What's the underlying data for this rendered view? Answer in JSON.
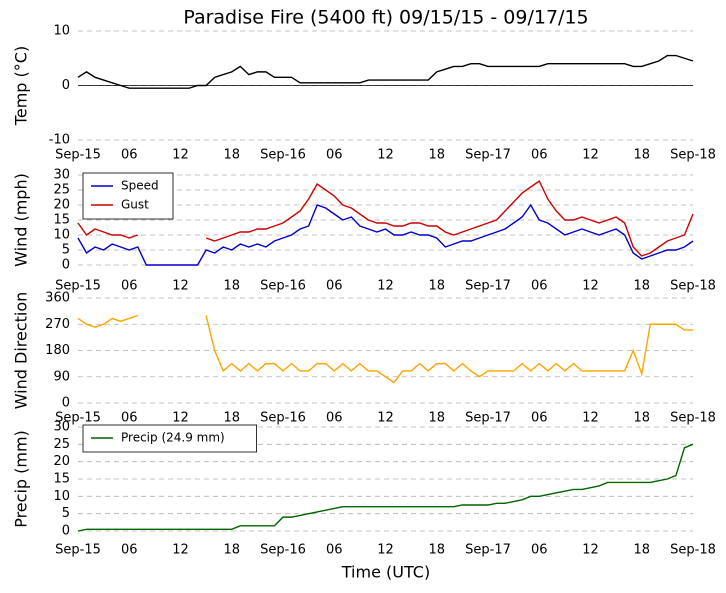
{
  "chart_data": [
    {
      "type": "line",
      "title": "Paradise Fire (5400 ft) 09/15/15 - 09/17/15",
      "ylabel": "Temp (°C)",
      "x": [
        0,
        1,
        2,
        3,
        4,
        5,
        6,
        7,
        8,
        9,
        10,
        11,
        12,
        13,
        14,
        15,
        16,
        17,
        18,
        19,
        20,
        21,
        22,
        23,
        24,
        25,
        26,
        27,
        28,
        29,
        30,
        31,
        32,
        33,
        34,
        35,
        36,
        37,
        38,
        39,
        40,
        41,
        42,
        43,
        44,
        45,
        46,
        47,
        48,
        49,
        50,
        51,
        52,
        53,
        54,
        55,
        56,
        57,
        58,
        59,
        60,
        61,
        62,
        63,
        64,
        65,
        66,
        67,
        68,
        69,
        70,
        71,
        72
      ],
      "series": [
        {
          "name": "Temp",
          "color": "#000000",
          "values": [
            1.5,
            2.5,
            1.5,
            1,
            0.5,
            0,
            -0.5,
            -0.5,
            -0.5,
            -0.5,
            -0.5,
            -0.5,
            -0.5,
            -0.5,
            0,
            0,
            1.5,
            2,
            2.5,
            3.5,
            2,
            2.5,
            2.5,
            1.5,
            1.5,
            1.5,
            0.5,
            0.5,
            0.5,
            0.5,
            0.5,
            0.5,
            0.5,
            0.5,
            1,
            1,
            1,
            1,
            1,
            1,
            1,
            1,
            2.5,
            3,
            3.5,
            3.5,
            4,
            4,
            3.5,
            3.5,
            3.5,
            3.5,
            3.5,
            3.5,
            3.5,
            4,
            4,
            4,
            4,
            4,
            4,
            4,
            4,
            4,
            4,
            3.5,
            3.5,
            4,
            4.5,
            5.5,
            5.5,
            5,
            4.5
          ]
        }
      ],
      "xlim": [
        0,
        72
      ],
      "xticks": [
        {
          "value": 0,
          "label": "Sep-15"
        },
        {
          "value": 6,
          "label": "06"
        },
        {
          "value": 12,
          "label": "12"
        },
        {
          "value": 18,
          "label": "18"
        },
        {
          "value": 24,
          "label": "Sep-16"
        },
        {
          "value": 30,
          "label": "06"
        },
        {
          "value": 36,
          "label": "12"
        },
        {
          "value": 42,
          "label": "18"
        },
        {
          "value": 48,
          "label": "Sep-17"
        },
        {
          "value": 54,
          "label": "06"
        },
        {
          "value": 60,
          "label": "12"
        },
        {
          "value": 66,
          "label": "18"
        },
        {
          "value": 72,
          "label": "Sep-18"
        }
      ],
      "ylim": [
        -10,
        10
      ],
      "yticks": [
        -10,
        0,
        10
      ],
      "grid": true
    },
    {
      "type": "line",
      "ylabel": "Wind (mph)",
      "legend": "upper left",
      "x": [
        0,
        1,
        2,
        3,
        4,
        5,
        6,
        7,
        8,
        9,
        10,
        11,
        12,
        13,
        14,
        15,
        16,
        17,
        18,
        19,
        20,
        21,
        22,
        23,
        24,
        25,
        26,
        27,
        28,
        29,
        30,
        31,
        32,
        33,
        34,
        35,
        36,
        37,
        38,
        39,
        40,
        41,
        42,
        43,
        44,
        45,
        46,
        47,
        48,
        49,
        50,
        51,
        52,
        53,
        54,
        55,
        56,
        57,
        58,
        59,
        60,
        61,
        62,
        63,
        64,
        65,
        66,
        67,
        68,
        69,
        70,
        71,
        72
      ],
      "series": [
        {
          "name": "Speed",
          "color": "#0000cc",
          "values": [
            9,
            4,
            6,
            5,
            7,
            6,
            5,
            6,
            0,
            0,
            0,
            0,
            0,
            0,
            0,
            5,
            4,
            6,
            5,
            7,
            6,
            7,
            6,
            8,
            9,
            10,
            12,
            13,
            20,
            19,
            17,
            15,
            16,
            13,
            12,
            11,
            12,
            10,
            10,
            11,
            10,
            10,
            9,
            6,
            7,
            8,
            8,
            9,
            10,
            11,
            12,
            14,
            16,
            20,
            15,
            14,
            12,
            10,
            11,
            12,
            11,
            10,
            11,
            12,
            10,
            4,
            2,
            3,
            4,
            5,
            5,
            6,
            8
          ]
        },
        {
          "name": "Gust",
          "color": "#cc0000",
          "values": [
            14,
            10,
            12,
            11,
            10,
            10,
            9,
            10,
            null,
            null,
            null,
            null,
            null,
            null,
            null,
            9,
            8,
            9,
            10,
            11,
            11,
            12,
            12,
            13,
            14,
            16,
            18,
            22,
            27,
            25,
            23,
            20,
            19,
            17,
            15,
            14,
            14,
            13,
            13,
            14,
            14,
            13,
            13,
            11,
            10,
            11,
            12,
            13,
            14,
            15,
            18,
            21,
            24,
            26,
            28,
            22,
            18,
            15,
            15,
            16,
            15,
            14,
            15,
            16,
            14,
            6,
            3,
            4,
            6,
            8,
            9,
            10,
            17
          ]
        }
      ],
      "xlim": [
        0,
        72
      ],
      "xticks": [
        {
          "value": 0,
          "label": "Sep-15"
        },
        {
          "value": 6,
          "label": "06"
        },
        {
          "value": 12,
          "label": "12"
        },
        {
          "value": 18,
          "label": "18"
        },
        {
          "value": 24,
          "label": "Sep-16"
        },
        {
          "value": 30,
          "label": "06"
        },
        {
          "value": 36,
          "label": "12"
        },
        {
          "value": 42,
          "label": "18"
        },
        {
          "value": 48,
          "label": "Sep-17"
        },
        {
          "value": 54,
          "label": "06"
        },
        {
          "value": 60,
          "label": "12"
        },
        {
          "value": 66,
          "label": "18"
        },
        {
          "value": 72,
          "label": "Sep-18"
        }
      ],
      "ylim": [
        0,
        30
      ],
      "yticks": [
        0,
        5,
        10,
        15,
        20,
        25,
        30
      ],
      "grid": true
    },
    {
      "type": "line",
      "ylabel": "Wind Direction",
      "x": [
        0,
        1,
        2,
        3,
        4,
        5,
        6,
        7,
        8,
        9,
        10,
        11,
        12,
        13,
        14,
        15,
        16,
        17,
        18,
        19,
        20,
        21,
        22,
        23,
        24,
        25,
        26,
        27,
        28,
        29,
        30,
        31,
        32,
        33,
        34,
        35,
        36,
        37,
        38,
        39,
        40,
        41,
        42,
        43,
        44,
        45,
        46,
        47,
        48,
        49,
        50,
        51,
        52,
        53,
        54,
        55,
        56,
        57,
        58,
        59,
        60,
        61,
        62,
        63,
        64,
        65,
        66,
        67,
        68,
        69,
        70,
        71,
        72
      ],
      "series": [
        {
          "name": "Direction",
          "color": "#ffa500",
          "values": [
            290,
            270,
            260,
            270,
            290,
            280,
            290,
            300,
            null,
            null,
            null,
            null,
            null,
            null,
            null,
            300,
            180,
            110,
            135,
            110,
            135,
            110,
            135,
            135,
            110,
            135,
            110,
            110,
            135,
            135,
            110,
            135,
            110,
            135,
            110,
            110,
            90,
            70,
            110,
            110,
            135,
            110,
            135,
            135,
            110,
            135,
            110,
            90,
            110,
            110,
            110,
            110,
            135,
            110,
            135,
            110,
            135,
            110,
            135,
            110,
            110,
            110,
            110,
            110,
            110,
            180,
            100,
            270,
            270,
            270,
            270,
            250,
            250
          ]
        }
      ],
      "xlim": [
        0,
        72
      ],
      "xticks": [
        {
          "value": 0,
          "label": "Sep-15"
        },
        {
          "value": 6,
          "label": "06"
        },
        {
          "value": 12,
          "label": "12"
        },
        {
          "value": 18,
          "label": "18"
        },
        {
          "value": 24,
          "label": "Sep-16"
        },
        {
          "value": 30,
          "label": "06"
        },
        {
          "value": 36,
          "label": "12"
        },
        {
          "value": 42,
          "label": "18"
        },
        {
          "value": 48,
          "label": "Sep-17"
        },
        {
          "value": 54,
          "label": "06"
        },
        {
          "value": 60,
          "label": "12"
        },
        {
          "value": 66,
          "label": "18"
        },
        {
          "value": 72,
          "label": "Sep-18"
        }
      ],
      "ylim": [
        0,
        360
      ],
      "yticks": [
        0,
        90,
        180,
        270,
        360
      ],
      "grid": true
    },
    {
      "type": "line",
      "ylabel": "Precip (mm)",
      "xlabel": "Time (UTC)",
      "legend": "upper left",
      "x": [
        0,
        1,
        2,
        3,
        4,
        5,
        6,
        7,
        8,
        9,
        10,
        11,
        12,
        13,
        14,
        15,
        16,
        17,
        18,
        19,
        20,
        21,
        22,
        23,
        24,
        25,
        26,
        27,
        28,
        29,
        30,
        31,
        32,
        33,
        34,
        35,
        36,
        37,
        38,
        39,
        40,
        41,
        42,
        43,
        44,
        45,
        46,
        47,
        48,
        49,
        50,
        51,
        52,
        53,
        54,
        55,
        56,
        57,
        58,
        59,
        60,
        61,
        62,
        63,
        64,
        65,
        66,
        67,
        68,
        69,
        70,
        71,
        72
      ],
      "series": [
        {
          "name": "Precip (24.9 mm)",
          "color": "#006400",
          "values": [
            0,
            0.5,
            0.5,
            0.5,
            0.5,
            0.5,
            0.5,
            0.5,
            0.5,
            0.5,
            0.5,
            0.5,
            0.5,
            0.5,
            0.5,
            0.5,
            0.5,
            0.5,
            0.5,
            1.5,
            1.5,
            1.5,
            1.5,
            1.5,
            4,
            4,
            4.5,
            5,
            5.5,
            6,
            6.5,
            7,
            7,
            7,
            7,
            7,
            7,
            7,
            7,
            7,
            7,
            7,
            7,
            7,
            7,
            7.5,
            7.5,
            7.5,
            7.5,
            8,
            8,
            8.5,
            9,
            10,
            10,
            10.5,
            11,
            11.5,
            12,
            12,
            12.5,
            13,
            14,
            14,
            14,
            14,
            14,
            14,
            14.5,
            15,
            16,
            24,
            25
          ]
        }
      ],
      "xlim": [
        0,
        72
      ],
      "xticks": [
        {
          "value": 0,
          "label": "Sep-15"
        },
        {
          "value": 6,
          "label": "06"
        },
        {
          "value": 12,
          "label": "12"
        },
        {
          "value": 18,
          "label": "18"
        },
        {
          "value": 24,
          "label": "Sep-16"
        },
        {
          "value": 30,
          "label": "06"
        },
        {
          "value": 36,
          "label": "12"
        },
        {
          "value": 42,
          "label": "18"
        },
        {
          "value": 48,
          "label": "Sep-17"
        },
        {
          "value": 54,
          "label": "06"
        },
        {
          "value": 60,
          "label": "12"
        },
        {
          "value": 66,
          "label": "18"
        },
        {
          "value": 72,
          "label": "Sep-18"
        }
      ],
      "ylim": [
        0,
        30
      ],
      "yticks": [
        0,
        5,
        10,
        15,
        20,
        25,
        30
      ],
      "grid": true
    }
  ]
}
